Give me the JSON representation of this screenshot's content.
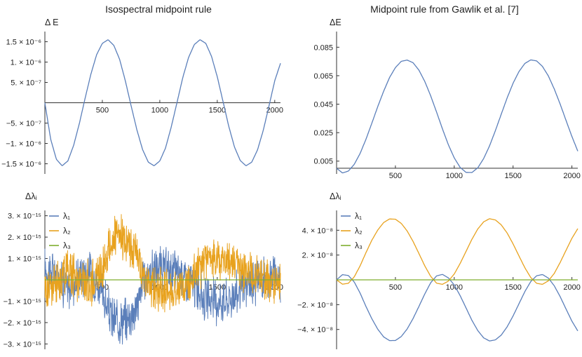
{
  "titles": {
    "left": "Isospectral midpoint rule",
    "right": "Midpoint rule from Gawlik et al. [7]"
  },
  "colors": {
    "blue": "#5b7fba",
    "orange": "#e8a21e",
    "green": "#7fae2e"
  },
  "chart_data": [
    {
      "type": "line",
      "title": "Isospectral midpoint rule",
      "ylabel": "Δ E",
      "xlim": [
        0,
        2050
      ],
      "ylim": [
        -1.75e-06,
        1.75e-06
      ],
      "x_ticks": [
        {
          "value": 500,
          "label": "500"
        },
        {
          "value": 1000,
          "label": "1000"
        },
        {
          "value": 1500,
          "label": "1500"
        },
        {
          "value": 2000,
          "label": "2000"
        }
      ],
      "y_ticks": [
        {
          "value": 1.5e-06,
          "label": "1.5 × 10⁻⁶"
        },
        {
          "value": 1e-06,
          "label": "1. × 10⁻⁶"
        },
        {
          "value": 5e-07,
          "label": "5. × 10⁻⁷"
        },
        {
          "value": -5e-07,
          "label": "−5. × 10⁻⁷"
        },
        {
          "value": -1e-06,
          "label": "−1. × 10⁻⁶"
        },
        {
          "value": -1.5e-06,
          "label": "−1.5 × 10⁻⁶"
        }
      ],
      "series": [
        {
          "color": "#5b7fba",
          "x": [
            0,
            50,
            100,
            150,
            200,
            250,
            300,
            350,
            400,
            450,
            500,
            550,
            600,
            650,
            700,
            750,
            800,
            850,
            900,
            950,
            1000,
            1050,
            1100,
            1150,
            1200,
            1250,
            1300,
            1350,
            1400,
            1450,
            1500,
            1550,
            1600,
            1650,
            1700,
            1750,
            1800,
            1850,
            1900,
            1950,
            2000,
            2050
          ],
          "y": [
            0,
            -8.9e-07,
            -1.39e-06,
            -1.55e-06,
            -1.43e-06,
            -1.05e-06,
            -5.1e-07,
            1.1e-07,
            7e-07,
            1.18e-06,
            1.46e-06,
            1.55e-06,
            1.41e-06,
            1.07e-06,
            5.4e-07,
            -7e-08,
            -6.6e-07,
            -1.15e-06,
            -1.46e-06,
            -1.55e-06,
            -1.43e-06,
            -1.11e-06,
            -5.9e-07,
            1e-08,
            6.2e-07,
            1.11e-06,
            1.43e-06,
            1.55e-06,
            1.46e-06,
            1.14e-06,
            6.4e-07,
            3e-08,
            -5.8e-07,
            -1.09e-06,
            -1.42e-06,
            -1.55e-06,
            -1.46e-06,
            -1.16e-06,
            -6.8e-07,
            -8e-08,
            5.4e-07,
            9.7e-07
          ]
        }
      ]
    },
    {
      "type": "line",
      "title": "Midpoint rule from Gawlik et al. [7]",
      "ylabel": "ΔE",
      "xlim": [
        0,
        2050
      ],
      "ylim": [
        -0.004,
        0.096
      ],
      "x_ticks": [
        {
          "value": 500,
          "label": "500"
        },
        {
          "value": 1000,
          "label": "1000"
        },
        {
          "value": 1500,
          "label": "1500"
        },
        {
          "value": 2000,
          "label": "2000"
        }
      ],
      "y_ticks": [
        {
          "value": 0.085,
          "label": "0.085"
        },
        {
          "value": 0.065,
          "label": "0.065"
        },
        {
          "value": 0.045,
          "label": "0.045"
        },
        {
          "value": 0.025,
          "label": "0.025"
        },
        {
          "value": 0.005,
          "label": "0.005"
        }
      ],
      "series": [
        {
          "color": "#5b7fba",
          "x": [
            0,
            50,
            100,
            150,
            200,
            250,
            300,
            350,
            400,
            450,
            500,
            550,
            600,
            650,
            700,
            750,
            800,
            850,
            900,
            950,
            1000,
            1050,
            1100,
            1150,
            1200,
            1250,
            1300,
            1350,
            1400,
            1450,
            1500,
            1550,
            1600,
            1650,
            1700,
            1750,
            1800,
            1850,
            1900,
            1950,
            2000,
            2050
          ],
          "y": [
            0,
            -0.0033,
            -0.002,
            0.0027,
            0.0104,
            0.0204,
            0.0317,
            0.0433,
            0.0541,
            0.0637,
            0.0707,
            0.0751,
            0.076,
            0.0741,
            0.0689,
            0.0609,
            0.0508,
            0.0394,
            0.0276,
            0.0165,
            0.0073,
            0.0006,
            -0.0029,
            -0.003,
            0.0003,
            0.0068,
            0.0157,
            0.0265,
            0.0381,
            0.0495,
            0.0597,
            0.0679,
            0.0736,
            0.0761,
            0.0754,
            0.0715,
            0.0648,
            0.0557,
            0.0451,
            0.0336,
            0.0223,
            0.012
          ]
        }
      ]
    },
    {
      "type": "line",
      "title": "",
      "ylabel": "Δλᵢ",
      "xlim": [
        0,
        2050
      ],
      "ylim": [
        -3.25e-15,
        3.25e-15
      ],
      "x_ticks": [
        {
          "value": 500,
          "label": "500"
        },
        {
          "value": 1000,
          "label": "1000"
        },
        {
          "value": 1500,
          "label": "1500"
        },
        {
          "value": 2000,
          "label": "2000"
        }
      ],
      "y_ticks": [
        {
          "value": 3e-15,
          "label": "3. × 10⁻¹⁵"
        },
        {
          "value": 2e-15,
          "label": "2. × 10⁻¹⁵"
        },
        {
          "value": 1e-15,
          "label": "1. × 10⁻¹⁵"
        },
        {
          "value": -1e-15,
          "label": "−1. × 10⁻¹⁵"
        },
        {
          "value": -2e-15,
          "label": "−2. × 10⁻¹⁵"
        },
        {
          "value": -3e-15,
          "label": "−3. × 10⁻¹⁵"
        }
      ],
      "legend_position": "top-left",
      "series": [
        {
          "name": "λ₁",
          "color": "#5b7fba",
          "x": [
            0,
            100,
            200,
            300,
            400,
            500,
            550,
            600,
            700,
            800,
            850,
            900,
            1000,
            1100,
            1200,
            1300,
            1400,
            1500,
            1600,
            1700,
            1800,
            1900,
            2000,
            2050
          ],
          "y": [
            5e-16,
            3e-16,
            -5e-16,
            2e-16,
            4e-16,
            -6e-16,
            -1.5e-15,
            -1.9e-15,
            -1.9e-15,
            -1.3e-15,
            -2e-16,
            3e-16,
            5e-16,
            4e-16,
            3e-16,
            -3e-16,
            -9e-16,
            -1e-15,
            -9e-16,
            -5e-16,
            -2e-16,
            1e-16,
            2e-16,
            0.0
          ]
        },
        {
          "name": "λ₂",
          "color": "#e8a21e",
          "x": [
            0,
            100,
            200,
            300,
            400,
            500,
            550,
            600,
            700,
            800,
            850,
            900,
            1000,
            1100,
            1200,
            1300,
            1400,
            1500,
            1600,
            1700,
            1800,
            1900,
            2000,
            2050
          ],
          "y": [
            -4e-16,
            -2e-16,
            6e-16,
            0.0,
            -2e-16,
            5e-16,
            1.4e-15,
            1.9e-15,
            1.9e-15,
            1.2e-15,
            2e-16,
            -3e-16,
            -5e-16,
            -5e-16,
            -3e-16,
            3e-16,
            9e-16,
            1e-15,
            9e-16,
            5e-16,
            2e-16,
            0.0,
            -1e-16,
            0.0
          ]
        },
        {
          "name": "λ₃",
          "color": "#7fae2e",
          "x": [
            0,
            2050
          ],
          "y": [
            0,
            0
          ]
        }
      ]
    },
    {
      "type": "line",
      "title": "",
      "ylabel": "Δλᵢ",
      "xlim": [
        0,
        2050
      ],
      "ylim": [
        -5.6e-08,
        5.6e-08
      ],
      "x_ticks": [
        {
          "value": 500,
          "label": "500"
        },
        {
          "value": 1000,
          "label": "1000"
        },
        {
          "value": 1500,
          "label": "1500"
        },
        {
          "value": 2000,
          "label": "2000"
        }
      ],
      "y_ticks": [
        {
          "value": 4e-08,
          "label": "4. × 10⁻⁸"
        },
        {
          "value": 2e-08,
          "label": "2. × 10⁻⁸"
        },
        {
          "value": -2e-08,
          "label": "−2. × 10⁻⁸"
        },
        {
          "value": -4e-08,
          "label": "−4. × 10⁻⁸"
        }
      ],
      "legend_position": "top-left",
      "series": [
        {
          "name": "λ₁",
          "color": "#5b7fba",
          "x": [
            0,
            50,
            100,
            150,
            200,
            250,
            300,
            350,
            400,
            450,
            500,
            550,
            600,
            650,
            700,
            750,
            800,
            850,
            900,
            950,
            1000,
            1050,
            1100,
            1150,
            1200,
            1250,
            1300,
            1350,
            1400,
            1450,
            1500,
            1550,
            1600,
            1650,
            1700,
            1750,
            1800,
            1850,
            1900,
            1950,
            2000,
            2050
          ],
          "y": [
            0,
            4.2e-09,
            3.5e-09,
            -1.7e-09,
            -1.07e-08,
            -2.15e-08,
            -3.14e-08,
            -3.98e-08,
            -4.6e-08,
            -4.9e-08,
            -4.89e-08,
            -4.57e-08,
            -3.96e-08,
            -3.12e-08,
            -2.14e-08,
            -1.13e-08,
            -2.3e-09,
            3.2e-09,
            4.4e-09,
            1.6e-09,
            -4.1e-09,
            -1.27e-08,
            -2.26e-08,
            -3.26e-08,
            -4.09e-08,
            -4.68e-08,
            -4.93e-08,
            -4.84e-08,
            -4.45e-08,
            -3.78e-08,
            -2.91e-08,
            -1.93e-08,
            -9.5e-09,
            -1.4e-09,
            3.3e-09,
            4.3e-09,
            1.4e-09,
            -4.8e-09,
            -1.35e-08,
            -2.35e-08,
            -3.33e-08,
            -4.12e-08
          ]
        },
        {
          "name": "λ₂",
          "color": "#e8a21e",
          "x": [
            0,
            50,
            100,
            150,
            200,
            250,
            300,
            350,
            400,
            450,
            500,
            550,
            600,
            650,
            700,
            750,
            800,
            850,
            900,
            950,
            1000,
            1050,
            1100,
            1150,
            1200,
            1250,
            1300,
            1350,
            1400,
            1450,
            1500,
            1550,
            1600,
            1650,
            1700,
            1750,
            1800,
            1850,
            1900,
            1950,
            2000,
            2050
          ],
          "y": [
            0,
            -3.5e-09,
            -2.8e-09,
            2.4e-09,
            1.13e-08,
            2.2e-08,
            3.2e-08,
            4.02e-08,
            4.62e-08,
            4.91e-08,
            4.89e-08,
            4.55e-08,
            3.94e-08,
            3.1e-08,
            2.12e-08,
            1.12e-08,
            2.8e-09,
            -2.7e-09,
            -3.6e-09,
            -1e-09,
            4.7e-09,
            1.32e-08,
            2.29e-08,
            3.27e-08,
            4.1e-08,
            4.68e-08,
            4.93e-08,
            4.83e-08,
            4.43e-08,
            3.77e-08,
            2.9e-08,
            1.93e-08,
            9.8e-09,
            1.9e-09,
            -2.8e-09,
            -3.6e-09,
            -8e-10,
            5.2e-09,
            1.4e-08,
            2.38e-08,
            3.35e-08,
            4.13e-08
          ]
        },
        {
          "name": "λ₃",
          "color": "#7fae2e",
          "x": [
            0,
            2050
          ],
          "y": [
            0,
            0
          ]
        }
      ]
    }
  ]
}
